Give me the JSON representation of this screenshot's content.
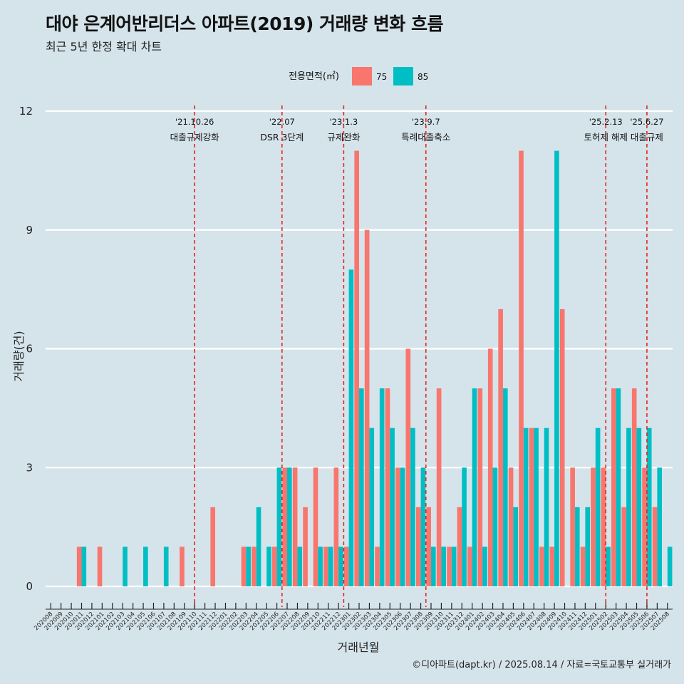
{
  "title": "대야 은계어반리더스 아파트(2019) 거래량 변화 흐름",
  "subtitle": "최근 5년 한정 확대 차트",
  "caption": "©디아파트(dapt.kr) / 2025.08.14 / 자료=국토교통부 실거래가",
  "colors": {
    "background": "#d5e4eb",
    "s75": "#f8766d",
    "s85": "#00bfc4",
    "grid": "#ffffff",
    "event_line": "#e8231f"
  },
  "chart_data": {
    "type": "bar",
    "xlabel": "거래년월",
    "ylabel": "거래량(건)",
    "ylim": [
      -0.6,
      12.4
    ],
    "yticks": [
      0,
      3,
      6,
      9,
      12
    ],
    "grid": "horizontal",
    "legend": {
      "title": "전용면적(㎡)",
      "position": "top",
      "entries": [
        "75",
        "85"
      ]
    },
    "categories": [
      "202008",
      "202009",
      "202010",
      "202011",
      "202012",
      "202101",
      "202102",
      "202103",
      "202104",
      "202105",
      "202106",
      "202107",
      "202108",
      "202109",
      "202110",
      "202111",
      "202112",
      "202201",
      "202202",
      "202203",
      "202204",
      "202205",
      "202206",
      "202207",
      "202208",
      "202209",
      "202210",
      "202211",
      "202212",
      "202301",
      "202302",
      "202303",
      "202304",
      "202305",
      "202306",
      "202307",
      "202308",
      "202309",
      "202310",
      "202311",
      "202312",
      "202401",
      "202402",
      "202403",
      "202404",
      "202405",
      "202406",
      "202407",
      "202408",
      "202409",
      "202410",
      "202411",
      "202412",
      "202501",
      "202502",
      "202503",
      "202504",
      "202505",
      "202506",
      "202507",
      "202508"
    ],
    "series": [
      {
        "name": "75",
        "values": [
          0,
          0,
          0,
          1,
          0,
          1,
          0,
          0,
          0,
          0,
          0,
          0,
          0,
          1,
          0,
          0,
          2,
          0,
          0,
          1,
          1,
          0,
          1,
          3,
          3,
          2,
          3,
          1,
          3,
          1,
          11,
          9,
          1,
          5,
          3,
          6,
          2,
          2,
          5,
          1,
          2,
          1,
          5,
          6,
          7,
          3,
          11,
          4,
          1,
          1,
          7,
          3,
          1,
          3,
          3,
          5,
          2,
          5,
          3,
          2,
          0
        ]
      },
      {
        "name": "85",
        "values": [
          0,
          0,
          0,
          1,
          0,
          0,
          0,
          1,
          0,
          1,
          0,
          1,
          0,
          0,
          0,
          0,
          0,
          0,
          0,
          1,
          2,
          1,
          3,
          3,
          1,
          0,
          1,
          1,
          1,
          8,
          5,
          4,
          5,
          4,
          3,
          4,
          3,
          1,
          1,
          1,
          3,
          5,
          1,
          3,
          5,
          2,
          4,
          4,
          4,
          11,
          0,
          2,
          2,
          4,
          1,
          5,
          4,
          4,
          4,
          3,
          1
        ]
      }
    ],
    "events": [
      {
        "date": "'21.10.26",
        "label": "대출규제강화",
        "position": 14.5
      },
      {
        "date": "'22.07",
        "label": "DSR 3단계",
        "position": 23
      },
      {
        "date": "'23.1.3",
        "label": "규제완화",
        "position": 29
      },
      {
        "date": "'23.9.7",
        "label": "특례대출축소",
        "position": 37
      },
      {
        "date": "'25.2.13",
        "label": "토허제 해제",
        "position": 54.5
      },
      {
        "date": "'25.6.27",
        "label": "대출규제",
        "position": 58.5
      }
    ]
  }
}
